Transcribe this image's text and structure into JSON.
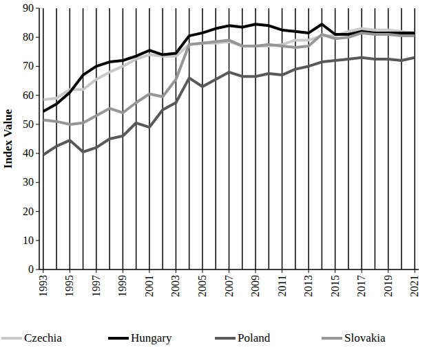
{
  "chart_data": {
    "type": "line",
    "y_label": "Index Value",
    "x": [
      1993,
      1994,
      1995,
      1996,
      1997,
      1998,
      1999,
      2000,
      2001,
      2002,
      2003,
      2004,
      2005,
      2006,
      2007,
      2008,
      2009,
      2010,
      2011,
      2012,
      2013,
      2014,
      2015,
      2016,
      2017,
      2018,
      2019,
      2020,
      2021
    ],
    "xlim": [
      1992.7,
      2021.3
    ],
    "xticks": [
      1993,
      1995,
      1997,
      1999,
      2001,
      2003,
      2005,
      2007,
      2009,
      2011,
      2013,
      2015,
      2017,
      2019,
      2021
    ],
    "ylim": [
      0,
      90
    ],
    "yticks": [
      0,
      10,
      20,
      30,
      40,
      50,
      60,
      70,
      80,
      90
    ],
    "grid": "x",
    "legend": "bottom",
    "series": [
      {
        "name": "Czechia",
        "color": "#c8c8c8",
        "values": [
          58.5,
          59,
          62,
          62,
          65.5,
          68,
          70,
          72.5,
          74,
          73.5,
          73.5,
          77.5,
          78,
          78,
          78.5,
          77,
          77,
          77,
          77.5,
          79,
          79,
          80.5,
          80.5,
          82,
          83,
          82.5,
          82.5,
          82,
          81.5
        ]
      },
      {
        "name": "Hungary",
        "color": "#000000",
        "values": [
          54.5,
          57,
          61,
          67,
          70,
          71.5,
          72,
          73.5,
          75.5,
          74,
          74.5,
          80.5,
          81.5,
          83,
          84,
          83.5,
          84.5,
          84,
          82.5,
          82,
          81.5,
          84.5,
          81,
          81,
          82,
          81.5,
          81.5,
          81.5,
          81.5
        ]
      },
      {
        "name": "Poland",
        "color": "#595959",
        "values": [
          39.5,
          42.5,
          44.5,
          40.5,
          42,
          45,
          46,
          50.5,
          49,
          55,
          57.5,
          66,
          63,
          65.5,
          68,
          66.5,
          66.5,
          67.5,
          67,
          69,
          70,
          71.5,
          72,
          72.5,
          73,
          72.5,
          72.5,
          72,
          73
        ]
      },
      {
        "name": "Slovakia",
        "color": "#969696",
        "values": [
          51.5,
          51,
          50,
          50.5,
          53,
          55.5,
          54,
          57.5,
          60.5,
          59.5,
          65.5,
          77.5,
          78,
          78.5,
          79,
          77,
          77,
          77.5,
          77,
          76.5,
          77,
          81,
          79.5,
          80,
          81.5,
          81,
          81,
          80.5,
          80.5
        ]
      }
    ]
  }
}
